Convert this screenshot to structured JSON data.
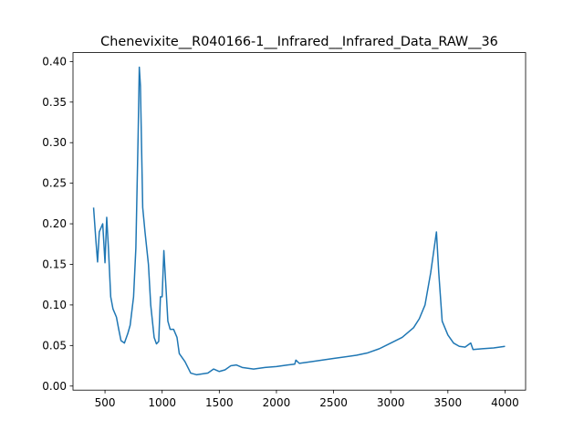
{
  "chart_data": {
    "type": "line",
    "title": "Chenevixite__R040166-1__Infrared__Infrared_Data_RAW__36",
    "series": [
      {
        "color": "#1f77b4",
        "x": [
          400,
          420,
          435,
          450,
          480,
          500,
          515,
          530,
          550,
          570,
          600,
          620,
          640,
          670,
          700,
          720,
          750,
          770,
          790,
          800,
          810,
          830,
          850,
          880,
          900,
          930,
          950,
          970,
          985,
          1000,
          1015,
          1030,
          1050,
          1070,
          1100,
          1130,
          1150,
          1200,
          1250,
          1300,
          1400,
          1450,
          1500,
          1550,
          1600,
          1650,
          1700,
          1800,
          1900,
          2000,
          2100,
          2160,
          2170,
          2200,
          2300,
          2500,
          2700,
          2800,
          2900,
          3000,
          3100,
          3200,
          3250,
          3300,
          3350,
          3400,
          3420,
          3450,
          3500,
          3550,
          3600,
          3650,
          3700,
          3720,
          3800,
          3900,
          4000
        ],
        "values": [
          0.22,
          0.18,
          0.153,
          0.19,
          0.2,
          0.152,
          0.208,
          0.17,
          0.11,
          0.095,
          0.085,
          0.07,
          0.056,
          0.053,
          0.065,
          0.075,
          0.11,
          0.17,
          0.31,
          0.393,
          0.37,
          0.22,
          0.19,
          0.15,
          0.1,
          0.06,
          0.052,
          0.055,
          0.11,
          0.11,
          0.167,
          0.13,
          0.08,
          0.07,
          0.07,
          0.06,
          0.04,
          0.03,
          0.016,
          0.014,
          0.016,
          0.021,
          0.018,
          0.02,
          0.025,
          0.026,
          0.023,
          0.021,
          0.023,
          0.024,
          0.026,
          0.027,
          0.032,
          0.028,
          0.03,
          0.034,
          0.038,
          0.041,
          0.046,
          0.053,
          0.06,
          0.072,
          0.083,
          0.1,
          0.14,
          0.19,
          0.14,
          0.08,
          0.063,
          0.053,
          0.049,
          0.048,
          0.053,
          0.045,
          0.046,
          0.047,
          0.049
        ]
      }
    ],
    "xlim": [
      220,
      4180
    ],
    "ylim": [
      -0.005,
      0.411
    ],
    "xticks": [
      500,
      1000,
      1500,
      2000,
      2500,
      3000,
      3500,
      4000
    ],
    "yticks": [
      {
        "value": 0,
        "label": "0.00"
      },
      {
        "value": 0.05,
        "label": "0.05"
      },
      {
        "value": 0.1,
        "label": "0.10"
      },
      {
        "value": 0.15,
        "label": "0.15"
      },
      {
        "value": 0.2,
        "label": "0.20"
      },
      {
        "value": 0.25,
        "label": "0.25"
      },
      {
        "value": 0.3,
        "label": "0.30"
      },
      {
        "value": 0.35,
        "label": "0.35"
      },
      {
        "value": 0.4,
        "label": "0.40"
      }
    ]
  }
}
